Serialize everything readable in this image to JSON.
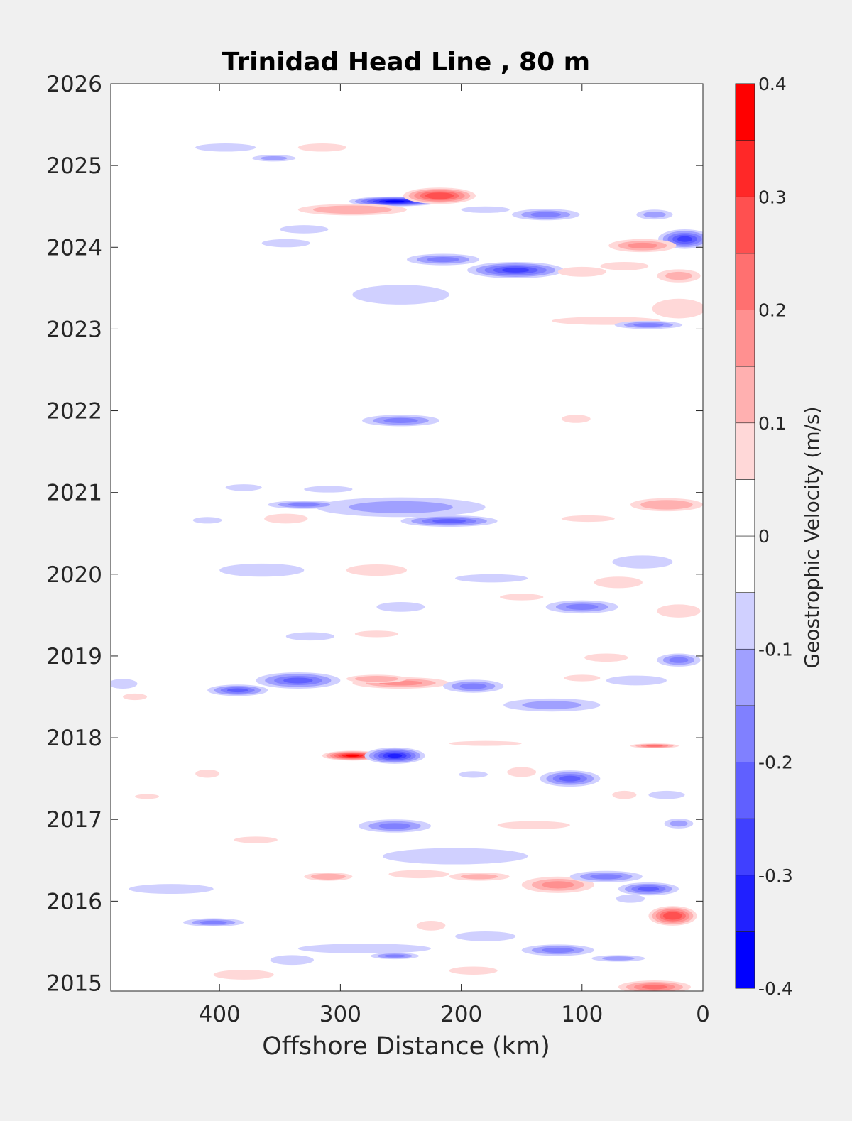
{
  "chart_data": {
    "type": "heatmap",
    "title": "Trinidad Head Line , 80 m",
    "xlabel": "Offshore Distance (km)",
    "ylabel": "",
    "xlim": [
      490,
      0
    ],
    "ylim": [
      2014.9,
      2026
    ],
    "x_reversed": true,
    "x_ticks": [
      400,
      300,
      200,
      100,
      0
    ],
    "y_ticks": [
      2015,
      2016,
      2017,
      2018,
      2019,
      2020,
      2021,
      2022,
      2023,
      2024,
      2025,
      2026
    ],
    "grid": false,
    "colorbar": {
      "label": "Geostrophic Velocity (m/s)",
      "range": [
        -0.4,
        0.4
      ],
      "ticks": [
        -0.4,
        -0.3,
        -0.2,
        -0.1,
        0,
        0.1,
        0.2,
        0.3,
        0.4
      ],
      "levels": [
        {
          "lo": -0.4,
          "hi": -0.35,
          "color": "#0000ff"
        },
        {
          "lo": -0.35,
          "hi": -0.3,
          "color": "#2020ff"
        },
        {
          "lo": -0.3,
          "hi": -0.25,
          "color": "#4040ff"
        },
        {
          "lo": -0.25,
          "hi": -0.2,
          "color": "#6060ff"
        },
        {
          "lo": -0.2,
          "hi": -0.15,
          "color": "#8080ff"
        },
        {
          "lo": -0.15,
          "hi": -0.1,
          "color": "#a0a0ff"
        },
        {
          "lo": -0.1,
          "hi": -0.05,
          "color": "#d0d0ff"
        },
        {
          "lo": -0.05,
          "hi": 0.0,
          "color": "#ffffff"
        },
        {
          "lo": 0.0,
          "hi": 0.05,
          "color": "#ffffff"
        },
        {
          "lo": 0.05,
          "hi": 0.1,
          "color": "#ffd8d8"
        },
        {
          "lo": 0.1,
          "hi": 0.15,
          "color": "#ffb0b0"
        },
        {
          "lo": 0.15,
          "hi": 0.2,
          "color": "#ff9090"
        },
        {
          "lo": 0.2,
          "hi": 0.25,
          "color": "#ff7070"
        },
        {
          "lo": 0.25,
          "hi": 0.3,
          "color": "#ff5050"
        },
        {
          "lo": 0.3,
          "hi": 0.35,
          "color": "#ff2828"
        },
        {
          "lo": 0.35,
          "hi": 0.4,
          "color": "#ff0000"
        }
      ],
      "position": "right"
    },
    "features": [
      {
        "x": 255,
        "y": 2024.56,
        "rx": 38,
        "ry": 0.06,
        "v": -0.35
      },
      {
        "x": 218,
        "y": 2024.63,
        "rx": 30,
        "ry": 0.1,
        "v": 0.3
      },
      {
        "x": 290,
        "y": 2024.46,
        "rx": 45,
        "ry": 0.07,
        "v": 0.15
      },
      {
        "x": 355,
        "y": 2025.09,
        "rx": 18,
        "ry": 0.04,
        "v": -0.1
      },
      {
        "x": 395,
        "y": 2025.22,
        "rx": 25,
        "ry": 0.05,
        "v": -0.08
      },
      {
        "x": 315,
        "y": 2025.22,
        "rx": 20,
        "ry": 0.05,
        "v": 0.08
      },
      {
        "x": 130,
        "y": 2024.4,
        "rx": 28,
        "ry": 0.07,
        "v": -0.18
      },
      {
        "x": 40,
        "y": 2024.4,
        "rx": 15,
        "ry": 0.06,
        "v": -0.12
      },
      {
        "x": 15,
        "y": 2024.1,
        "rx": 22,
        "ry": 0.12,
        "v": -0.25
      },
      {
        "x": 50,
        "y": 2024.02,
        "rx": 28,
        "ry": 0.08,
        "v": 0.18
      },
      {
        "x": 155,
        "y": 2023.72,
        "rx": 40,
        "ry": 0.1,
        "v": -0.25
      },
      {
        "x": 215,
        "y": 2023.85,
        "rx": 30,
        "ry": 0.07,
        "v": -0.15
      },
      {
        "x": 100,
        "y": 2023.7,
        "rx": 20,
        "ry": 0.06,
        "v": 0.1
      },
      {
        "x": 20,
        "y": 2023.65,
        "rx": 18,
        "ry": 0.08,
        "v": 0.12
      },
      {
        "x": 65,
        "y": 2023.77,
        "rx": 20,
        "ry": 0.05,
        "v": 0.1
      },
      {
        "x": 80,
        "y": 2023.1,
        "rx": 45,
        "ry": 0.05,
        "v": 0.1
      },
      {
        "x": 45,
        "y": 2023.05,
        "rx": 28,
        "ry": 0.05,
        "v": -0.18
      },
      {
        "x": 20,
        "y": 2023.25,
        "rx": 22,
        "ry": 0.12,
        "v": 0.1
      },
      {
        "x": 250,
        "y": 2023.42,
        "rx": 40,
        "ry": 0.12,
        "v": -0.08
      },
      {
        "x": 345,
        "y": 2024.05,
        "rx": 20,
        "ry": 0.05,
        "v": -0.08
      },
      {
        "x": 330,
        "y": 2024.22,
        "rx": 20,
        "ry": 0.05,
        "v": -0.08
      },
      {
        "x": 180,
        "y": 2024.46,
        "rx": 20,
        "ry": 0.04,
        "v": -0.08
      },
      {
        "x": 250,
        "y": 2021.88,
        "rx": 32,
        "ry": 0.07,
        "v": -0.18
      },
      {
        "x": 105,
        "y": 2021.9,
        "rx": 12,
        "ry": 0.05,
        "v": 0.1
      },
      {
        "x": 250,
        "y": 2020.82,
        "rx": 70,
        "ry": 0.12,
        "v": -0.1
      },
      {
        "x": 210,
        "y": 2020.65,
        "rx": 40,
        "ry": 0.07,
        "v": -0.22
      },
      {
        "x": 330,
        "y": 2020.85,
        "rx": 30,
        "ry": 0.05,
        "v": -0.15
      },
      {
        "x": 310,
        "y": 2021.04,
        "rx": 20,
        "ry": 0.04,
        "v": -0.08
      },
      {
        "x": 345,
        "y": 2020.68,
        "rx": 18,
        "ry": 0.06,
        "v": 0.1
      },
      {
        "x": 30,
        "y": 2020.85,
        "rx": 30,
        "ry": 0.08,
        "v": 0.15
      },
      {
        "x": 95,
        "y": 2020.68,
        "rx": 22,
        "ry": 0.04,
        "v": 0.08
      },
      {
        "x": 380,
        "y": 2021.06,
        "rx": 15,
        "ry": 0.04,
        "v": -0.08
      },
      {
        "x": 410,
        "y": 2020.66,
        "rx": 12,
        "ry": 0.04,
        "v": -0.08
      },
      {
        "x": 365,
        "y": 2020.05,
        "rx": 35,
        "ry": 0.08,
        "v": -0.08
      },
      {
        "x": 270,
        "y": 2020.05,
        "rx": 25,
        "ry": 0.07,
        "v": 0.1
      },
      {
        "x": 175,
        "y": 2019.95,
        "rx": 30,
        "ry": 0.05,
        "v": -0.08
      },
      {
        "x": 100,
        "y": 2019.6,
        "rx": 30,
        "ry": 0.08,
        "v": -0.15
      },
      {
        "x": 70,
        "y": 2019.9,
        "rx": 20,
        "ry": 0.07,
        "v": 0.1
      },
      {
        "x": 50,
        "y": 2020.15,
        "rx": 25,
        "ry": 0.08,
        "v": -0.08
      },
      {
        "x": 20,
        "y": 2019.55,
        "rx": 18,
        "ry": 0.08,
        "v": 0.1
      },
      {
        "x": 150,
        "y": 2019.72,
        "rx": 18,
        "ry": 0.04,
        "v": 0.08
      },
      {
        "x": 250,
        "y": 2019.6,
        "rx": 20,
        "ry": 0.06,
        "v": -0.08
      },
      {
        "x": 325,
        "y": 2019.24,
        "rx": 20,
        "ry": 0.05,
        "v": -0.08
      },
      {
        "x": 270,
        "y": 2019.27,
        "rx": 18,
        "ry": 0.04,
        "v": 0.1
      },
      {
        "x": 335,
        "y": 2018.7,
        "rx": 35,
        "ry": 0.1,
        "v": -0.2
      },
      {
        "x": 385,
        "y": 2018.58,
        "rx": 25,
        "ry": 0.07,
        "v": -0.2
      },
      {
        "x": 250,
        "y": 2018.67,
        "rx": 40,
        "ry": 0.07,
        "v": 0.18
      },
      {
        "x": 270,
        "y": 2018.72,
        "rx": 25,
        "ry": 0.05,
        "v": 0.15
      },
      {
        "x": 190,
        "y": 2018.63,
        "rx": 25,
        "ry": 0.08,
        "v": -0.18
      },
      {
        "x": 125,
        "y": 2018.4,
        "rx": 40,
        "ry": 0.08,
        "v": -0.12
      },
      {
        "x": 20,
        "y": 2018.95,
        "rx": 18,
        "ry": 0.08,
        "v": -0.15
      },
      {
        "x": 55,
        "y": 2018.7,
        "rx": 25,
        "ry": 0.06,
        "v": -0.08
      },
      {
        "x": 480,
        "y": 2018.66,
        "rx": 12,
        "ry": 0.06,
        "v": -0.08
      },
      {
        "x": 100,
        "y": 2018.73,
        "rx": 15,
        "ry": 0.04,
        "v": 0.1
      },
      {
        "x": 80,
        "y": 2018.98,
        "rx": 18,
        "ry": 0.05,
        "v": 0.1
      },
      {
        "x": 290,
        "y": 2017.78,
        "rx": 25,
        "ry": 0.06,
        "v": 0.38
      },
      {
        "x": 255,
        "y": 2017.78,
        "rx": 25,
        "ry": 0.1,
        "v": -0.3
      },
      {
        "x": 110,
        "y": 2017.5,
        "rx": 25,
        "ry": 0.1,
        "v": -0.2
      },
      {
        "x": 40,
        "y": 2017.9,
        "rx": 20,
        "ry": 0.03,
        "v": 0.22
      },
      {
        "x": 180,
        "y": 2017.93,
        "rx": 30,
        "ry": 0.03,
        "v": 0.1
      },
      {
        "x": 150,
        "y": 2017.58,
        "rx": 12,
        "ry": 0.06,
        "v": 0.1
      },
      {
        "x": 30,
        "y": 2017.3,
        "rx": 15,
        "ry": 0.05,
        "v": -0.08
      },
      {
        "x": 410,
        "y": 2017.56,
        "rx": 10,
        "ry": 0.05,
        "v": 0.1
      },
      {
        "x": 190,
        "y": 2017.55,
        "rx": 12,
        "ry": 0.04,
        "v": -0.08
      },
      {
        "x": 460,
        "y": 2017.28,
        "rx": 10,
        "ry": 0.03,
        "v": 0.1
      },
      {
        "x": 65,
        "y": 2017.3,
        "rx": 10,
        "ry": 0.05,
        "v": 0.1
      },
      {
        "x": 255,
        "y": 2016.92,
        "rx": 30,
        "ry": 0.08,
        "v": -0.18
      },
      {
        "x": 205,
        "y": 2016.55,
        "rx": 60,
        "ry": 0.1,
        "v": -0.08
      },
      {
        "x": 140,
        "y": 2016.93,
        "rx": 30,
        "ry": 0.05,
        "v": 0.1
      },
      {
        "x": 120,
        "y": 2016.2,
        "rx": 30,
        "ry": 0.1,
        "v": 0.18
      },
      {
        "x": 80,
        "y": 2016.3,
        "rx": 30,
        "ry": 0.07,
        "v": -0.15
      },
      {
        "x": 45,
        "y": 2016.15,
        "rx": 25,
        "ry": 0.08,
        "v": -0.22
      },
      {
        "x": 25,
        "y": 2015.82,
        "rx": 20,
        "ry": 0.12,
        "v": 0.3
      },
      {
        "x": 40,
        "y": 2014.95,
        "rx": 30,
        "ry": 0.08,
        "v": 0.22
      },
      {
        "x": 310,
        "y": 2016.3,
        "rx": 20,
        "ry": 0.05,
        "v": 0.15
      },
      {
        "x": 440,
        "y": 2016.15,
        "rx": 35,
        "ry": 0.06,
        "v": -0.08
      },
      {
        "x": 405,
        "y": 2015.74,
        "rx": 25,
        "ry": 0.05,
        "v": -0.15
      },
      {
        "x": 280,
        "y": 2015.42,
        "rx": 55,
        "ry": 0.06,
        "v": -0.08
      },
      {
        "x": 255,
        "y": 2015.33,
        "rx": 20,
        "ry": 0.04,
        "v": -0.15
      },
      {
        "x": 180,
        "y": 2015.57,
        "rx": 25,
        "ry": 0.06,
        "v": -0.08
      },
      {
        "x": 120,
        "y": 2015.4,
        "rx": 30,
        "ry": 0.07,
        "v": -0.15
      },
      {
        "x": 235,
        "y": 2016.33,
        "rx": 25,
        "ry": 0.05,
        "v": 0.1
      },
      {
        "x": 185,
        "y": 2016.3,
        "rx": 25,
        "ry": 0.05,
        "v": 0.12
      },
      {
        "x": 60,
        "y": 2016.03,
        "rx": 12,
        "ry": 0.05,
        "v": -0.08
      },
      {
        "x": 70,
        "y": 2015.3,
        "rx": 22,
        "ry": 0.04,
        "v": -0.1
      },
      {
        "x": 340,
        "y": 2015.28,
        "rx": 18,
        "ry": 0.06,
        "v": -0.08
      },
      {
        "x": 20,
        "y": 2016.95,
        "rx": 12,
        "ry": 0.06,
        "v": -0.12
      },
      {
        "x": 225,
        "y": 2015.7,
        "rx": 12,
        "ry": 0.06,
        "v": 0.1
      },
      {
        "x": 380,
        "y": 2015.1,
        "rx": 25,
        "ry": 0.06,
        "v": 0.1
      },
      {
        "x": 190,
        "y": 2015.15,
        "rx": 20,
        "ry": 0.05,
        "v": 0.1
      },
      {
        "x": 470,
        "y": 2018.5,
        "rx": 10,
        "ry": 0.04,
        "v": 0.1
      },
      {
        "x": 370,
        "y": 2016.75,
        "rx": 18,
        "ry": 0.04,
        "v": 0.1
      }
    ]
  }
}
